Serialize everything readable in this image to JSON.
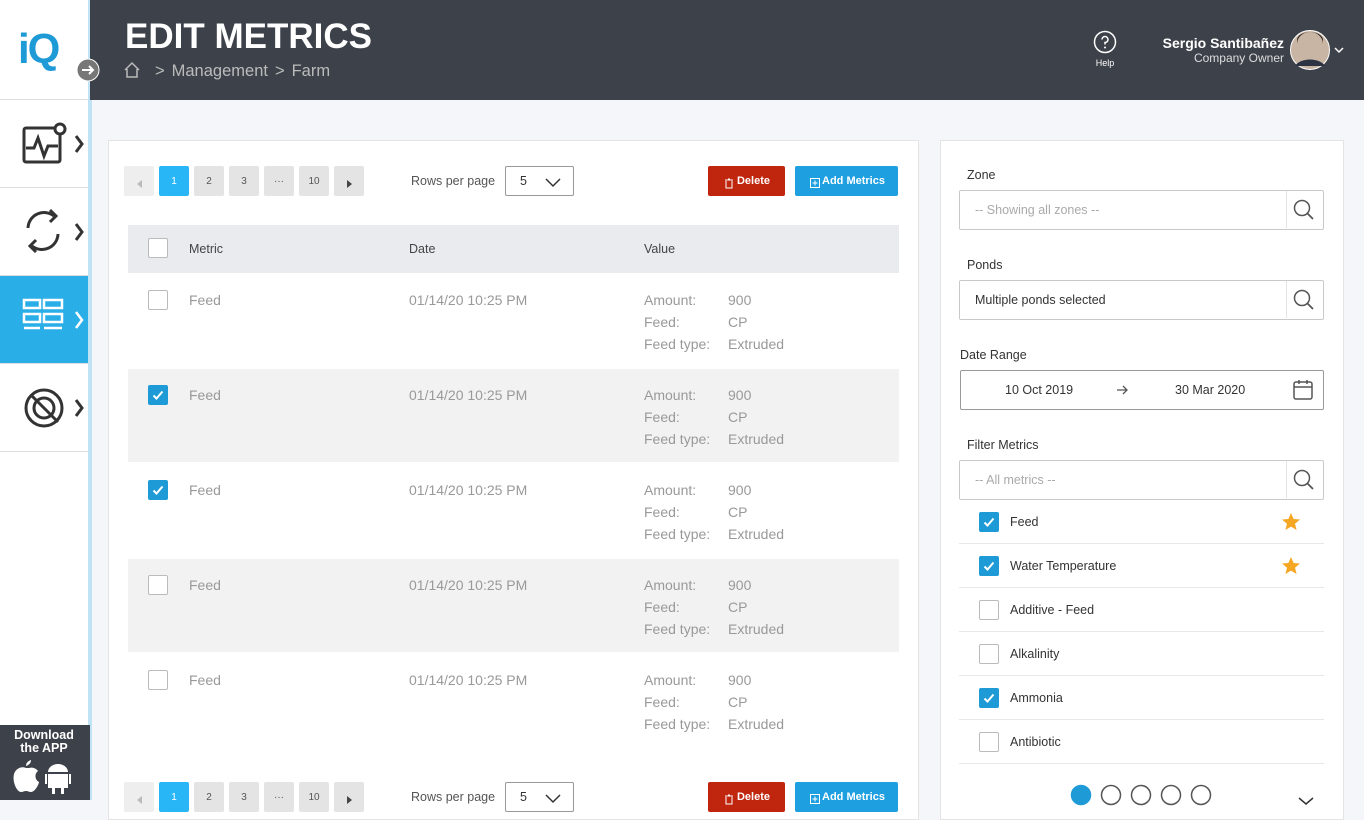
{
  "sidebar": {
    "logo": "iQ",
    "download": "Download the APP"
  },
  "header": {
    "title": "EDIT METRICS",
    "separator": ">",
    "breadcrumb": [
      "Management",
      "Farm"
    ],
    "help": "Help",
    "user": {
      "name": "Sergio Santibañez",
      "role": "Company Owner"
    }
  },
  "toolbar": {
    "pages": [
      "1",
      "2",
      "3",
      "···",
      "10"
    ],
    "rows_per_page_label": "Rows per page",
    "rows_per_page": "5",
    "delete": "Delete",
    "add": "Add Metrics"
  },
  "table": {
    "columns": [
      "Metric",
      "Date",
      "Value"
    ],
    "rows": [
      {
        "checked": false,
        "metric": "Feed",
        "date": "01/14/20 10:25 PM",
        "values": [
          [
            "Amount:",
            "900"
          ],
          [
            "Feed:",
            "CP"
          ],
          [
            "Feed type:",
            "Extruded"
          ]
        ]
      },
      {
        "checked": true,
        "metric": "Feed",
        "date": "01/14/20 10:25 PM",
        "values": [
          [
            "Amount:",
            "900"
          ],
          [
            "Feed:",
            "CP"
          ],
          [
            "Feed type:",
            "Extruded"
          ]
        ]
      },
      {
        "checked": true,
        "metric": "Feed",
        "date": "01/14/20 10:25 PM",
        "values": [
          [
            "Amount:",
            "900"
          ],
          [
            "Feed:",
            "CP"
          ],
          [
            "Feed type:",
            "Extruded"
          ]
        ]
      },
      {
        "checked": false,
        "metric": "Feed",
        "date": "01/14/20 10:25 PM",
        "values": [
          [
            "Amount:",
            "900"
          ],
          [
            "Feed:",
            "CP"
          ],
          [
            "Feed type:",
            "Extruded"
          ]
        ]
      },
      {
        "checked": false,
        "metric": "Feed",
        "date": "01/14/20 10:25 PM",
        "values": [
          [
            "Amount:",
            "900"
          ],
          [
            "Feed:",
            "CP"
          ],
          [
            "Feed type:",
            "Extruded"
          ]
        ]
      }
    ]
  },
  "filters": {
    "zone": {
      "label": "Zone",
      "placeholder": "-- Showing all zones --"
    },
    "ponds": {
      "label": "Ponds",
      "value": "Multiple ponds selected"
    },
    "date_range": {
      "label": "Date Range",
      "from": "10 Oct 2019",
      "to": "30 Mar 2020"
    },
    "metrics": {
      "label": "Filter Metrics",
      "placeholder": "-- All metrics --",
      "items": [
        {
          "name": "Feed",
          "checked": true,
          "starred": true
        },
        {
          "name": "Water Temperature",
          "checked": true,
          "starred": true
        },
        {
          "name": "Additive - Feed",
          "checked": false,
          "starred": false
        },
        {
          "name": "Alkalinity",
          "checked": false,
          "starred": false
        },
        {
          "name": "Ammonia",
          "checked": true,
          "starred": false
        },
        {
          "name": "Antibiotic",
          "checked": false,
          "starred": false
        }
      ]
    }
  }
}
